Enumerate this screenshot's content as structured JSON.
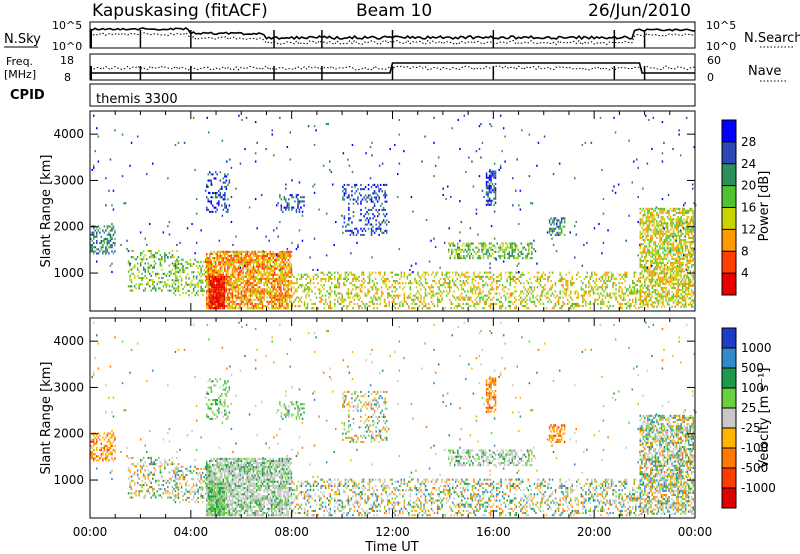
{
  "header": {
    "station": "Kapuskasing (fitACF)",
    "beam": "Beam 10",
    "date": "26/Jun/2010"
  },
  "strips": {
    "nsky_label": "N.Sky",
    "nsky_tick_top": "10^5",
    "nsky_tick_bottom": "10^0",
    "nsearch_label": "N.Search",
    "nsearch_tick_top": "10^5",
    "nsearch_tick_bottom": "10^0",
    "freq_label": "Freq.",
    "freq_unit": "[MHz]",
    "freq_tick_top": "18",
    "freq_tick_bottom": "8",
    "nave_label": "Nave",
    "nave_tick_top": "60",
    "nave_tick_bottom": "0",
    "cpid_label": "CPID",
    "cpid_value": "themis 3300"
  },
  "chart_data": [
    {
      "type": "heatmap",
      "id": "power",
      "ylabel": "Slant Range [km]",
      "xlabel": "",
      "xlim": [
        0,
        24
      ],
      "ylim": [
        180,
        4500
      ],
      "yticks": [
        "1000",
        "2000",
        "3000",
        "4000"
      ],
      "colorbar_label": "Power [dB]",
      "colorbar_ticks": [
        "4",
        "8",
        "12",
        "16",
        "20",
        "24",
        "28"
      ],
      "colorbar_colors": [
        "#0000ff",
        "#2c48b4",
        "#2f8f5c",
        "#51c232",
        "#c8d400",
        "#ff9a00",
        "#ff4000",
        "#e80000"
      ]
    },
    {
      "type": "heatmap",
      "id": "velocity",
      "ylabel": "Slant Range [km]",
      "xlabel": "Time UT",
      "xlim": [
        0,
        24
      ],
      "ylim": [
        180,
        4500
      ],
      "yticks": [
        "1000",
        "2000",
        "3000",
        "4000"
      ],
      "xticks": [
        "00:00",
        "04:00",
        "08:00",
        "12:00",
        "16:00",
        "20:00",
        "00:00"
      ],
      "colorbar_label": "Velocity [m s⁻¹]",
      "colorbar_ticks": [
        "1000",
        "500",
        "100",
        "25",
        "-25",
        "-100",
        "-500",
        "-1000"
      ],
      "colorbar_colors": [
        "#1e3cc8",
        "#2f8cc8",
        "#1f9a4c",
        "#6ad040",
        "#c8c8c8",
        "#ffb400",
        "#ff7800",
        "#ff3c00",
        "#e00000"
      ]
    }
  ],
  "colors": {
    "axis": "#000000",
    "ground_scatter": "#bebebe"
  }
}
